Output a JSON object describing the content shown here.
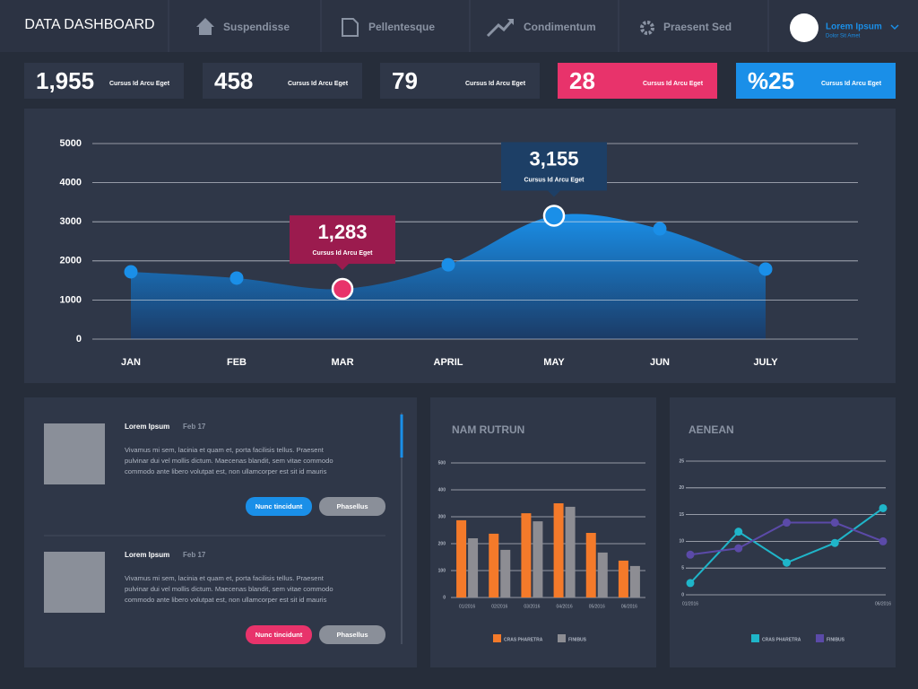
{
  "header": {
    "title": "DATA DASHBOARD",
    "nav": [
      "Suspendisse",
      "Pellentesque",
      "Condimentum",
      "Praesent Sed"
    ],
    "user_name": "Lorem Ipsum",
    "user_subtitle": "Dolor Sit Amet"
  },
  "stats": [
    {
      "value": "1,955",
      "label": "Cursus Id Arcu Eget",
      "color": "#2f3748"
    },
    {
      "value": "458",
      "label": "Cursus Id Arcu Eget",
      "color": "#2f3748"
    },
    {
      "value": "79",
      "label": "Cursus Id Arcu Eget",
      "color": "#2f3748"
    },
    {
      "value": "28",
      "label": "Cursus Id Arcu Eget",
      "color": "#e8336b"
    },
    {
      "value": "%25",
      "label": "Cursus Id Arcu Eget",
      "color": "#1a8fe8"
    }
  ],
  "main_chart": {
    "type": "area",
    "categories": [
      "JAN",
      "FEB",
      "MAR",
      "APRIL",
      "MAY",
      "JUN",
      "JULY"
    ],
    "values": [
      1720,
      1560,
      1283,
      1900,
      3155,
      2820,
      1790
    ],
    "value_labels": [
      null,
      null,
      "1,283",
      null,
      "3,155",
      null,
      null
    ],
    "callout_text": "Cursus Id Arcu Eget",
    "point_colors": [
      "#1a8fe8",
      "#1a8fe8",
      "#e8336b",
      "#1a8fe8",
      "#1a8fe8",
      "#1a8fe8",
      "#1a8fe8"
    ],
    "label_colors": [
      null,
      null,
      "#9b1b4e",
      null,
      "#1d3f66",
      null,
      null
    ],
    "color": "#1a8fe8",
    "ylim": [
      0,
      5000
    ],
    "yticks": [
      0,
      1000,
      2000,
      3000,
      4000,
      5000
    ],
    "grid": true
  },
  "posts": [
    {
      "title": "Lorem Ipsum",
      "date": "Feb 17",
      "body": [
        "Vivamus mi sem, lacinia et quam et, porta facilisis tellus. Praesent",
        "pulvinar dui vel mollis dictum. Maecenas blandit, sem vitae commodo",
        "commodo  ante libero volutpat est, non ullamcorper est sit id mauris"
      ],
      "buttons": [
        "Nunc tincidunt",
        "Phasellus"
      ],
      "button_color": "#1a8fe8"
    },
    {
      "title": "Lorem Ipsum",
      "date": "Feb 17",
      "body": [
        "Vivamus mi sem, lacinia et quam et, porta facilisis tellus. Praesent",
        "pulvinar dui vel mollis dictum. Maecenas blandit, sem vitae commodo",
        "commodo  ante libero volutpat est, non ullamcorper est sit id mauris"
      ],
      "buttons": [
        "Nunc tincidunt",
        "Phasellus"
      ],
      "button_color": "#e8336b"
    }
  ],
  "bar_chart": {
    "type": "bar",
    "title": "NAM RUTRUN",
    "categories": [
      "01/2016",
      "02/2016",
      "03/2016",
      "04/2016",
      "05/2016",
      "06/2016"
    ],
    "series": [
      {
        "name": "CRAS PHARETRA",
        "color": "#f47a2a",
        "values": [
          287,
          237,
          313,
          350,
          240,
          137
        ]
      },
      {
        "name": "FINIBUS",
        "color": "#8d8d93",
        "values": [
          220,
          177,
          283,
          337,
          167,
          117
        ]
      }
    ],
    "ylim": [
      0,
      500
    ],
    "yticks": [
      0,
      100,
      200,
      300,
      400,
      500
    ],
    "grid": true
  },
  "line_chart": {
    "type": "line",
    "title": "AENEAN",
    "categories": [
      "01/2016",
      null,
      null,
      null,
      "06/2016"
    ],
    "series": [
      {
        "name": "CRAS PHARETRA",
        "color": "#1fb5c9",
        "values": [
          2.2,
          11.8,
          6,
          9.7,
          16.2
        ]
      },
      {
        "name": "FINIBUS",
        "color": "#5b4aa8",
        "values": [
          7.5,
          8.7,
          13.5,
          13.5,
          10
        ]
      }
    ],
    "ylim": [
      0,
      25
    ],
    "yticks": [
      0,
      5,
      10,
      15,
      20,
      25
    ],
    "grid": true
  }
}
